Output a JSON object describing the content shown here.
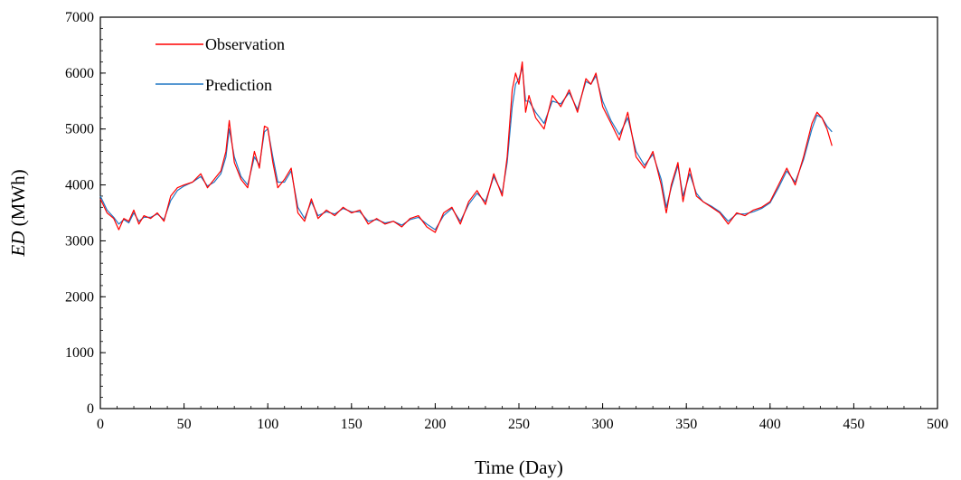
{
  "chart_data": {
    "type": "line",
    "title": "",
    "xlabel": "Time (Day)",
    "ylabel_italic": "ED",
    "ylabel_rest": " (MWh)",
    "xlim": [
      0,
      500
    ],
    "ylim": [
      0,
      7000
    ],
    "xticks": [
      0,
      50,
      100,
      150,
      200,
      250,
      300,
      350,
      400,
      450,
      500
    ],
    "yticks": [
      0,
      1000,
      2000,
      3000,
      4000,
      5000,
      6000,
      7000
    ],
    "grid": false,
    "legend_position": "top-left",
    "x": [
      0,
      4,
      8,
      11,
      14,
      17,
      20,
      23,
      26,
      30,
      34,
      38,
      42,
      46,
      50,
      55,
      60,
      64,
      68,
      72,
      75,
      77,
      80,
      84,
      88,
      92,
      95,
      98,
      100,
      103,
      106,
      110,
      114,
      118,
      122,
      126,
      130,
      135,
      140,
      145,
      150,
      155,
      160,
      165,
      170,
      175,
      180,
      185,
      190,
      195,
      200,
      205,
      210,
      215,
      220,
      225,
      230,
      235,
      240,
      243,
      246,
      248,
      250,
      252,
      254,
      256,
      260,
      265,
      270,
      275,
      280,
      285,
      290,
      293,
      296,
      300,
      305,
      310,
      315,
      320,
      325,
      330,
      335,
      338,
      341,
      345,
      348,
      352,
      356,
      360,
      365,
      370,
      375,
      380,
      385,
      390,
      395,
      400,
      405,
      410,
      415,
      420,
      425,
      428,
      431,
      434,
      437
    ],
    "series": [
      {
        "name": "Observation",
        "color": "#ff0000",
        "values": [
          3750,
          3500,
          3400,
          3200,
          3400,
          3350,
          3550,
          3300,
          3450,
          3400,
          3500,
          3350,
          3800,
          3950,
          4000,
          4050,
          4200,
          3950,
          4100,
          4250,
          4600,
          5150,
          4400,
          4100,
          3950,
          4600,
          4300,
          5050,
          5020,
          4400,
          3950,
          4100,
          4300,
          3500,
          3350,
          3750,
          3400,
          3550,
          3450,
          3600,
          3500,
          3550,
          3300,
          3400,
          3300,
          3350,
          3250,
          3400,
          3450,
          3250,
          3150,
          3500,
          3600,
          3300,
          3700,
          3900,
          3650,
          4200,
          3800,
          4500,
          5700,
          6000,
          5800,
          6200,
          5300,
          5600,
          5200,
          5000,
          5600,
          5400,
          5700,
          5300,
          5900,
          5800,
          6000,
          5400,
          5100,
          4800,
          5300,
          4500,
          4300,
          4600,
          4000,
          3500,
          4000,
          4400,
          3700,
          4300,
          3800,
          3700,
          3600,
          3500,
          3300,
          3500,
          3450,
          3550,
          3600,
          3700,
          4000,
          4300,
          4000,
          4500,
          5100,
          5300,
          5200,
          5000,
          4700
        ]
      },
      {
        "name": "Prediction",
        "color": "#1f77c4",
        "values": [
          3800,
          3550,
          3420,
          3300,
          3380,
          3320,
          3500,
          3350,
          3420,
          3420,
          3480,
          3380,
          3720,
          3900,
          3980,
          4050,
          4150,
          3980,
          4050,
          4200,
          4500,
          5000,
          4500,
          4150,
          4000,
          4500,
          4350,
          4950,
          5000,
          4500,
          4050,
          4050,
          4250,
          3600,
          3400,
          3700,
          3450,
          3520,
          3480,
          3580,
          3520,
          3520,
          3350,
          3380,
          3320,
          3350,
          3280,
          3380,
          3420,
          3300,
          3200,
          3450,
          3580,
          3350,
          3650,
          3850,
          3700,
          4150,
          3850,
          4400,
          5400,
          5800,
          5900,
          6100,
          5500,
          5500,
          5300,
          5100,
          5500,
          5450,
          5650,
          5350,
          5850,
          5800,
          5950,
          5500,
          5150,
          4900,
          5200,
          4600,
          4350,
          4550,
          4100,
          3600,
          3950,
          4350,
          3800,
          4200,
          3850,
          3700,
          3620,
          3520,
          3350,
          3480,
          3480,
          3520,
          3580,
          3680,
          3950,
          4250,
          4050,
          4450,
          5000,
          5250,
          5200,
          5050,
          4950
        ]
      }
    ]
  }
}
